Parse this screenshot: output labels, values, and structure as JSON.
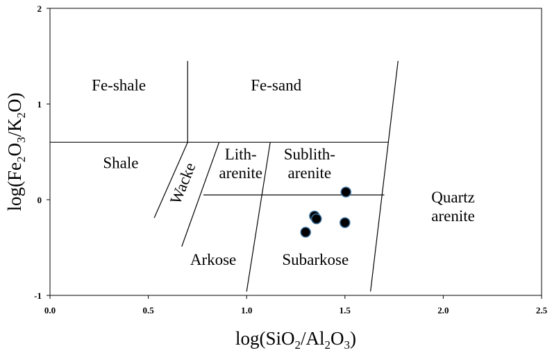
{
  "chart_data": {
    "type": "scatter",
    "title": "",
    "xlabel": {
      "pre": "log(SiO",
      "sub1": "2",
      "mid": "/Al",
      "sub2": "2",
      "mid2": "O",
      "sub3": "3",
      "post": ")"
    },
    "ylabel": {
      "pre": "log(Fe",
      "sub1": "2",
      "mid": "O",
      "sub2": "3",
      "mid2": "/K",
      "sub3": "2",
      "post": "O)"
    },
    "xlim": [
      0.0,
      2.5
    ],
    "ylim": [
      -1,
      2
    ],
    "xticks": [
      {
        "value": 0.0,
        "label": "0.0"
      },
      {
        "value": 0.5,
        "label": "0.5"
      },
      {
        "value": 1.0,
        "label": "1.0"
      },
      {
        "value": 1.5,
        "label": "1.5"
      },
      {
        "value": 2.0,
        "label": "2.0"
      },
      {
        "value": 2.5,
        "label": "2.5"
      }
    ],
    "yticks": [
      {
        "value": -1,
        "label": "-1"
      },
      {
        "value": 0,
        "label": "0"
      },
      {
        "value": 1,
        "label": "1"
      },
      {
        "value": 2,
        "label": "2"
      }
    ],
    "grid": false,
    "legend": "none",
    "series": [
      {
        "marker_color": "#000000",
        "marker_edge": "#3b6f9e",
        "points": [
          {
            "x": 1.3,
            "y": -0.34
          },
          {
            "x": 1.345,
            "y": -0.17
          },
          {
            "x": 1.355,
            "y": -0.2
          },
          {
            "x": 1.5,
            "y": -0.24
          },
          {
            "x": 1.505,
            "y": 0.08
          }
        ]
      }
    ],
    "field_boundaries": [
      {
        "x1": 0.0,
        "y1": 0.6,
        "x2": 1.72,
        "y2": 0.6
      },
      {
        "x1": 0.7,
        "y1": 1.45,
        "x2": 0.7,
        "y2": 0.6
      },
      {
        "x1": 0.7,
        "y1": 0.6,
        "x2": 0.53,
        "y2": -0.19
      },
      {
        "x1": 0.86,
        "y1": 0.6,
        "x2": 0.67,
        "y2": -0.49
      },
      {
        "x1": 1.12,
        "y1": 0.6,
        "x2": 1.0,
        "y2": -0.96
      },
      {
        "x1": 1.77,
        "y1": 1.45,
        "x2": 1.63,
        "y2": -0.96
      },
      {
        "x1": 0.78,
        "y1": 0.05,
        "x2": 1.7,
        "y2": 0.05
      }
    ],
    "field_labels": [
      {
        "lines": [
          "Fe-shale"
        ],
        "x": 0.35,
        "y": 1.14,
        "rotate": 0
      },
      {
        "lines": [
          "Fe-sand"
        ],
        "x": 1.15,
        "y": 1.14,
        "rotate": 0
      },
      {
        "lines": [
          "Shale"
        ],
        "x": 0.36,
        "y": 0.33,
        "rotate": 0
      },
      {
        "lines": [
          "Wacke"
        ],
        "x": 0.7,
        "y": 0.15,
        "rotate": -68
      },
      {
        "lines": [
          "Lith-",
          "arenite"
        ],
        "x": 0.97,
        "y": 0.42,
        "rotate": 0
      },
      {
        "lines": [
          "Sublith-",
          "arenite"
        ],
        "x": 1.32,
        "y": 0.42,
        "rotate": 0
      },
      {
        "lines": [
          "Quartz",
          "arenite"
        ],
        "x": 2.05,
        "y": -0.03,
        "rotate": 0
      },
      {
        "lines": [
          "Arkose"
        ],
        "x": 0.83,
        "y": -0.68,
        "rotate": 0
      },
      {
        "lines": [
          "Subarkose"
        ],
        "x": 1.35,
        "y": -0.68,
        "rotate": 0
      }
    ]
  }
}
